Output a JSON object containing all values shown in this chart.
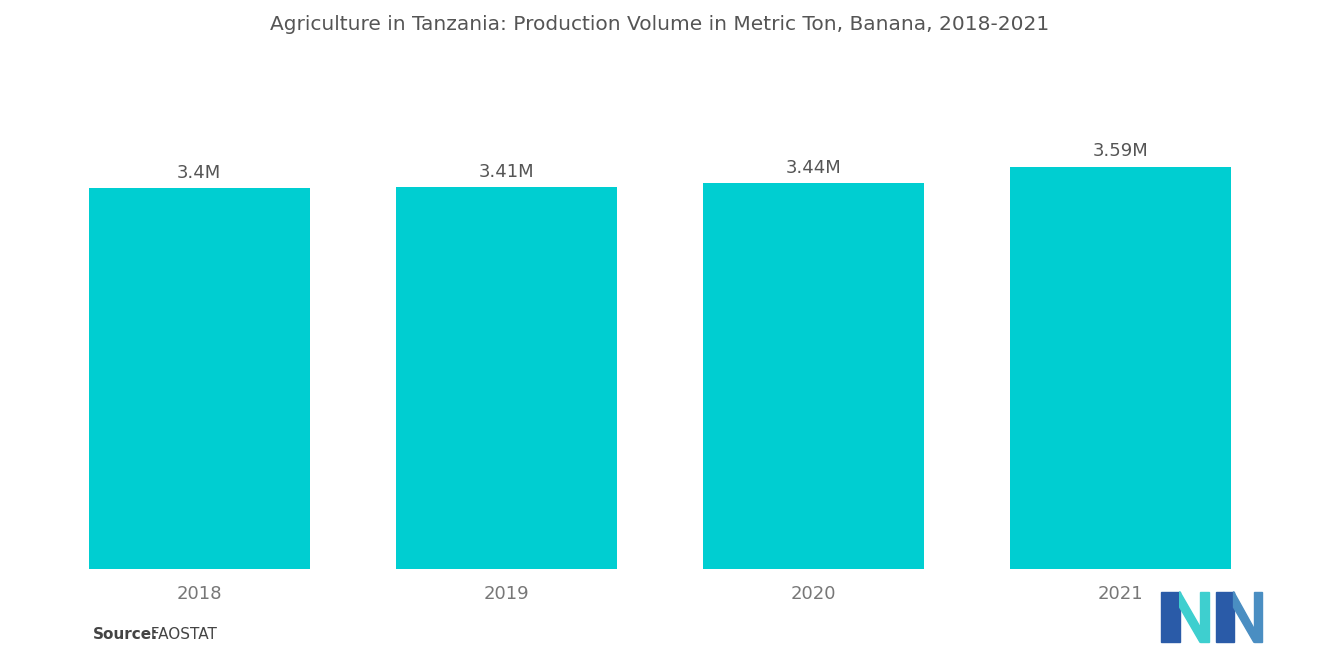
{
  "title": "Agriculture in Tanzania: Production Volume in Metric Ton, Banana, 2018-2021",
  "categories": [
    "2018",
    "2019",
    "2020",
    "2021"
  ],
  "values": [
    3400000,
    3410000,
    3440000,
    3590000
  ],
  "labels": [
    "3.4M",
    "3.41M",
    "3.44M",
    "3.59M"
  ],
  "bar_color": "#00CED1",
  "background_color": "#FFFFFF",
  "title_fontsize": 14.5,
  "label_fontsize": 13,
  "tick_fontsize": 13,
  "source_bold": "Source:",
  "source_normal": "  FAOSTAT",
  "ylim": [
    0,
    4500000
  ],
  "bar_width": 0.72,
  "logo_dark_blue": "#2A5BA8",
  "logo_mid_blue": "#4A8EC2",
  "logo_teal": "#3ECFCF"
}
